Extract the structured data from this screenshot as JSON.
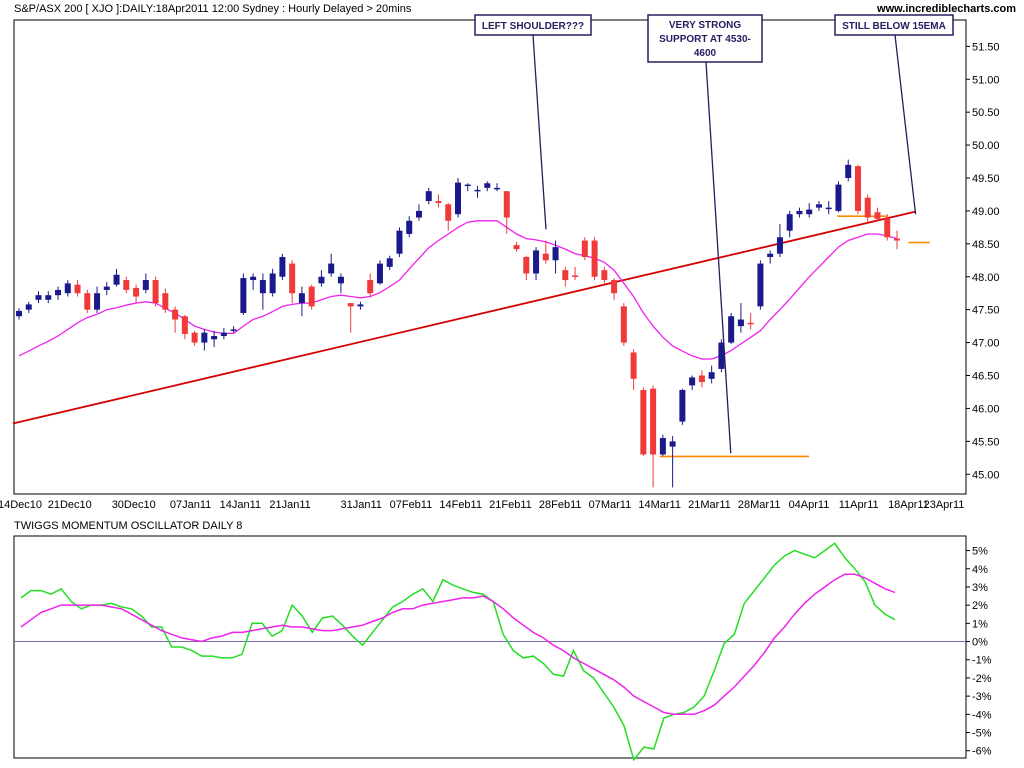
{
  "header": {
    "title": "S&P/ASX 200 [ XJO ]:DAILY:18Apr2011 12:00 Sydney : Hourly Delayed > 20mins",
    "site": "www.incrediblecharts.com"
  },
  "chart_data": [
    {
      "type": "candlestick",
      "title": "S&P/ASX 200 [ XJO ]:DAILY:18Apr2011 12:00 Sydney : Hourly Delayed > 20mins",
      "ylim": [
        44.7,
        51.9
      ],
      "y_ticks": [
        "45.00",
        "45.50",
        "46.00",
        "46.50",
        "47.00",
        "47.50",
        "48.00",
        "48.50",
        "49.00",
        "49.50",
        "50.00",
        "50.50",
        "51.00",
        "51.50"
      ],
      "x_ticks": [
        "14Dec10",
        "21Dec10",
        "30Dec10",
        "07Jan11",
        "14Jan11",
        "21Jan11",
        "31Jan11",
        "07Feb11",
        "14Feb11",
        "21Feb11",
        "28Feb11",
        "07Mar11",
        "14Mar11",
        "21Mar11",
        "28Mar11",
        "04Apr11",
        "11Apr11",
        "18Apr11",
        "23Apr11"
      ],
      "colors": {
        "up": "#1a1a8c",
        "down": "#f03a3a",
        "ema": "#ee22ee",
        "trendline": "#d40000",
        "support": "#ff8800"
      },
      "candles": [
        {
          "o": 47.4,
          "h": 47.52,
          "l": 47.35,
          "c": 47.48
        },
        {
          "o": 47.5,
          "h": 47.62,
          "l": 47.45,
          "c": 47.58
        },
        {
          "o": 47.65,
          "h": 47.78,
          "l": 47.6,
          "c": 47.72
        },
        {
          "o": 47.65,
          "h": 47.78,
          "l": 47.6,
          "c": 47.72
        },
        {
          "o": 47.72,
          "h": 47.85,
          "l": 47.65,
          "c": 47.8
        },
        {
          "o": 47.75,
          "h": 47.95,
          "l": 47.7,
          "c": 47.9
        },
        {
          "o": 47.88,
          "h": 47.95,
          "l": 47.7,
          "c": 47.75
        },
        {
          "o": 47.75,
          "h": 47.8,
          "l": 47.45,
          "c": 47.5
        },
        {
          "o": 47.5,
          "h": 47.85,
          "l": 47.45,
          "c": 47.75
        },
        {
          "o": 47.8,
          "h": 47.92,
          "l": 47.72,
          "c": 47.85
        },
        {
          "o": 47.88,
          "h": 48.12,
          "l": 47.85,
          "c": 48.03
        },
        {
          "o": 47.95,
          "h": 48.0,
          "l": 47.75,
          "c": 47.8
        },
        {
          "o": 47.83,
          "h": 47.88,
          "l": 47.6,
          "c": 47.7
        },
        {
          "o": 47.8,
          "h": 48.05,
          "l": 47.75,
          "c": 47.95
        },
        {
          "o": 47.95,
          "h": 48.0,
          "l": 47.55,
          "c": 47.6
        },
        {
          "o": 47.75,
          "h": 47.82,
          "l": 47.45,
          "c": 47.5
        },
        {
          "o": 47.5,
          "h": 47.55,
          "l": 47.15,
          "c": 47.35
        },
        {
          "o": 47.4,
          "h": 47.42,
          "l": 47.05,
          "c": 47.13
        },
        {
          "o": 47.15,
          "h": 47.18,
          "l": 46.95,
          "c": 47.0
        },
        {
          "o": 47.0,
          "h": 47.2,
          "l": 46.88,
          "c": 47.15
        },
        {
          "o": 47.05,
          "h": 47.18,
          "l": 46.93,
          "c": 47.1
        },
        {
          "o": 47.1,
          "h": 47.22,
          "l": 47.05,
          "c": 47.15
        },
        {
          "o": 47.2,
          "h": 47.25,
          "l": 47.15,
          "c": 47.2
        },
        {
          "o": 47.45,
          "h": 48.05,
          "l": 47.42,
          "c": 47.98
        },
        {
          "o": 47.95,
          "h": 48.05,
          "l": 47.8,
          "c": 48.0
        },
        {
          "o": 47.75,
          "h": 48.05,
          "l": 47.5,
          "c": 47.95
        },
        {
          "o": 47.75,
          "h": 48.12,
          "l": 47.7,
          "c": 48.05
        },
        {
          "o": 48.0,
          "h": 48.35,
          "l": 47.95,
          "c": 48.3
        },
        {
          "o": 48.2,
          "h": 48.25,
          "l": 47.6,
          "c": 47.75
        },
        {
          "o": 47.6,
          "h": 47.85,
          "l": 47.4,
          "c": 47.75
        },
        {
          "o": 47.85,
          "h": 47.88,
          "l": 47.5,
          "c": 47.55
        },
        {
          "o": 47.9,
          "h": 48.1,
          "l": 47.85,
          "c": 48.0
        },
        {
          "o": 48.05,
          "h": 48.35,
          "l": 48.0,
          "c": 48.2
        },
        {
          "o": 47.9,
          "h": 48.05,
          "l": 47.75,
          "c": 48.0
        },
        {
          "o": 47.6,
          "h": 47.6,
          "l": 47.15,
          "c": 47.55
        },
        {
          "o": 47.55,
          "h": 47.62,
          "l": 47.5,
          "c": 47.58
        },
        {
          "o": 47.95,
          "h": 48.05,
          "l": 47.7,
          "c": 47.75
        },
        {
          "o": 47.9,
          "h": 48.25,
          "l": 47.88,
          "c": 48.2
        },
        {
          "o": 48.15,
          "h": 48.32,
          "l": 48.1,
          "c": 48.28
        },
        {
          "o": 48.35,
          "h": 48.75,
          "l": 48.3,
          "c": 48.7
        },
        {
          "o": 48.65,
          "h": 48.92,
          "l": 48.6,
          "c": 48.85
        },
        {
          "o": 48.9,
          "h": 49.1,
          "l": 48.85,
          "c": 49.0
        },
        {
          "o": 49.15,
          "h": 49.35,
          "l": 49.1,
          "c": 49.3
        },
        {
          "o": 49.15,
          "h": 49.25,
          "l": 49.05,
          "c": 49.12
        },
        {
          "o": 49.1,
          "h": 49.12,
          "l": 48.7,
          "c": 48.85
        },
        {
          "o": 48.95,
          "h": 49.5,
          "l": 48.9,
          "c": 49.43
        },
        {
          "o": 49.38,
          "h": 49.42,
          "l": 49.3,
          "c": 49.4
        },
        {
          "o": 49.3,
          "h": 49.38,
          "l": 49.2,
          "c": 49.32
        },
        {
          "o": 49.35,
          "h": 49.45,
          "l": 49.3,
          "c": 49.42
        },
        {
          "o": 49.35,
          "h": 49.42,
          "l": 49.3,
          "c": 49.35
        },
        {
          "o": 49.3,
          "h": 49.3,
          "l": 48.65,
          "c": 48.9
        },
        {
          "o": 48.48,
          "h": 48.53,
          "l": 48.38,
          "c": 48.42
        },
        {
          "o": 48.3,
          "h": 48.32,
          "l": 47.95,
          "c": 48.05
        },
        {
          "o": 48.05,
          "h": 48.45,
          "l": 47.95,
          "c": 48.4
        },
        {
          "o": 48.35,
          "h": 48.55,
          "l": 48.2,
          "c": 48.25
        },
        {
          "o": 48.25,
          "h": 48.55,
          "l": 48.05,
          "c": 48.45
        },
        {
          "o": 48.1,
          "h": 48.15,
          "l": 47.85,
          "c": 47.95
        },
        {
          "o": 48.02,
          "h": 48.15,
          "l": 47.95,
          "c": 48.0
        },
        {
          "o": 48.55,
          "h": 48.6,
          "l": 48.25,
          "c": 48.3
        },
        {
          "o": 48.55,
          "h": 48.6,
          "l": 47.95,
          "c": 48.0
        },
        {
          "o": 48.1,
          "h": 48.15,
          "l": 47.9,
          "c": 47.95
        },
        {
          "o": 47.95,
          "h": 47.98,
          "l": 47.65,
          "c": 47.75
        },
        {
          "o": 47.55,
          "h": 47.6,
          "l": 46.95,
          "c": 47.0
        },
        {
          "o": 46.85,
          "h": 46.9,
          "l": 46.28,
          "c": 46.45
        },
        {
          "o": 46.28,
          "h": 46.32,
          "l": 45.28,
          "c": 45.3
        },
        {
          "o": 46.3,
          "h": 46.35,
          "l": 44.8,
          "c": 45.3
        },
        {
          "o": 45.3,
          "h": 45.6,
          "l": 45.28,
          "c": 45.55
        },
        {
          "o": 45.42,
          "h": 45.58,
          "l": 44.8,
          "c": 45.5
        },
        {
          "o": 45.8,
          "h": 46.3,
          "l": 45.75,
          "c": 46.28
        },
        {
          "o": 46.35,
          "h": 46.5,
          "l": 46.28,
          "c": 46.47
        },
        {
          "o": 46.5,
          "h": 46.58,
          "l": 46.32,
          "c": 46.4
        },
        {
          "o": 46.45,
          "h": 46.65,
          "l": 46.38,
          "c": 46.55
        },
        {
          "o": 46.6,
          "h": 47.05,
          "l": 46.55,
          "c": 47.0
        },
        {
          "o": 47.0,
          "h": 47.45,
          "l": 46.98,
          "c": 47.4
        },
        {
          "o": 47.25,
          "h": 47.6,
          "l": 47.15,
          "c": 47.35
        },
        {
          "o": 47.3,
          "h": 47.45,
          "l": 47.2,
          "c": 47.28
        },
        {
          "o": 47.55,
          "h": 48.25,
          "l": 47.5,
          "c": 48.2
        },
        {
          "o": 48.3,
          "h": 48.4,
          "l": 48.2,
          "c": 48.35
        },
        {
          "o": 48.35,
          "h": 48.8,
          "l": 48.3,
          "c": 48.6
        },
        {
          "o": 48.7,
          "h": 49.0,
          "l": 48.6,
          "c": 48.95
        },
        {
          "o": 48.95,
          "h": 49.05,
          "l": 48.9,
          "c": 49.0
        },
        {
          "o": 48.95,
          "h": 49.12,
          "l": 48.9,
          "c": 49.02
        },
        {
          "o": 49.05,
          "h": 49.15,
          "l": 49.0,
          "c": 49.1
        },
        {
          "o": 49.05,
          "h": 49.15,
          "l": 48.95,
          "c": 49.05
        },
        {
          "o": 49.0,
          "h": 49.45,
          "l": 48.98,
          "c": 49.4
        },
        {
          "o": 49.5,
          "h": 49.78,
          "l": 49.45,
          "c": 49.7
        },
        {
          "o": 49.68,
          "h": 49.7,
          "l": 48.95,
          "c": 49.0
        },
        {
          "o": 49.2,
          "h": 49.25,
          "l": 48.8,
          "c": 48.9
        },
        {
          "o": 48.98,
          "h": 49.05,
          "l": 48.85,
          "c": 48.88
        },
        {
          "o": 48.88,
          "h": 48.95,
          "l": 48.55,
          "c": 48.6
        },
        {
          "o": 48.58,
          "h": 48.7,
          "l": 48.42,
          "c": 48.55
        }
      ],
      "ema15": [
        46.8,
        46.87,
        46.95,
        47.02,
        47.1,
        47.2,
        47.3,
        47.38,
        47.43,
        47.5,
        47.53,
        47.57,
        47.6,
        47.62,
        47.6,
        47.52,
        47.45,
        47.35,
        47.25,
        47.2,
        47.16,
        47.14,
        47.14,
        47.25,
        47.35,
        47.4,
        47.47,
        47.55,
        47.58,
        47.6,
        47.6,
        47.65,
        47.7,
        47.72,
        47.7,
        47.68,
        47.7,
        47.76,
        47.85,
        47.95,
        48.12,
        48.28,
        48.44,
        48.55,
        48.65,
        48.75,
        48.83,
        48.85,
        48.85,
        48.85,
        48.75,
        48.65,
        48.58,
        48.56,
        48.53,
        48.48,
        48.42,
        48.35,
        48.32,
        48.28,
        48.22,
        48.1,
        47.9,
        47.7,
        47.45,
        47.25,
        47.08,
        46.95,
        46.87,
        46.8,
        46.75,
        46.75,
        46.8,
        46.88,
        46.98,
        47.08,
        47.18,
        47.35,
        47.5,
        47.66,
        47.83,
        48.0,
        48.15,
        48.3,
        48.45,
        48.55,
        48.6,
        48.65,
        48.65,
        48.62,
        48.58
      ],
      "trendline": [
        {
          "date": "13Dec10",
          "y": 45.77
        },
        {
          "date": "19Apr11",
          "y": 48.99
        }
      ],
      "support_lines": [
        {
          "from": "14Mar11",
          "to": "04Apr11",
          "y": 45.27
        },
        {
          "from": "08Apr11",
          "to": "15Apr11",
          "y": 48.92
        },
        {
          "from": "18Apr11",
          "to": "21Apr11",
          "y": 48.52
        }
      ],
      "annotations": [
        {
          "text": "LEFT SHOULDER???",
          "point_date": "26Feb11",
          "point_y": 48.72
        },
        {
          "text": "VERY STRONG SUPPORT AT 4530-4600",
          "point_date": "24Mar11",
          "point_y": 45.32
        },
        {
          "text": "STILL BELOW 15EMA",
          "point_date": "19Apr11",
          "point_y": 48.95
        }
      ]
    },
    {
      "type": "line",
      "title": "TWIGGS MOMENTUM OSCILLATOR DAILY 8",
      "ylim": [
        -6.4,
        5.8
      ],
      "y_ticks": [
        "5%",
        "4%",
        "3%",
        "2%",
        "1%",
        "0%",
        "-1%",
        "-2%",
        "-3%",
        "-4%",
        "-5%",
        "-6%"
      ],
      "zero_line": true,
      "series": [
        {
          "color": "#22dd22",
          "values": [
            2.4,
            2.8,
            2.8,
            2.6,
            2.9,
            2.2,
            1.8,
            2.0,
            2.0,
            2.1,
            1.9,
            1.8,
            1.4,
            0.8,
            0.8,
            -0.3,
            -0.3,
            -0.5,
            -0.8,
            -0.8,
            -0.9,
            -0.9,
            -0.7,
            1.0,
            1.0,
            0.3,
            0.6,
            2.0,
            1.4,
            0.5,
            1.3,
            1.4,
            0.9,
            0.3,
            -0.2,
            0.5,
            1.2,
            1.9,
            2.2,
            2.6,
            2.9,
            2.2,
            3.4,
            3.1,
            2.9,
            2.7,
            2.6,
            2.2,
            0.4,
            -0.5,
            -0.9,
            -0.8,
            -1.2,
            -1.8,
            -1.9,
            -0.5,
            -1.6,
            -2.0,
            -2.8,
            -3.6,
            -4.6,
            -6.5,
            -5.8,
            -5.9,
            -4.2,
            -4.0,
            -3.9,
            -3.6,
            -3.0,
            -1.6,
            -0.1,
            0.4,
            2.1,
            2.8,
            3.5,
            4.2,
            4.7,
            5.0,
            4.8,
            4.6,
            5.0,
            5.4,
            4.6,
            4.0,
            3.3,
            2.0,
            1.5,
            1.2
          ]
        },
        {
          "color": "#ee22ee",
          "values": [
            0.8,
            1.2,
            1.6,
            1.8,
            2.0,
            2.0,
            2.0,
            2.0,
            2.0,
            1.9,
            1.8,
            1.5,
            1.2,
            0.9,
            0.6,
            0.4,
            0.2,
            0.1,
            0.0,
            0.2,
            0.3,
            0.5,
            0.5,
            0.6,
            0.7,
            0.8,
            0.9,
            0.8,
            0.8,
            0.7,
            0.6,
            0.6,
            0.7,
            0.8,
            0.9,
            1.1,
            1.3,
            1.6,
            1.8,
            1.8,
            2.0,
            2.1,
            2.2,
            2.3,
            2.4,
            2.4,
            2.5,
            2.2,
            1.8,
            1.3,
            0.9,
            0.5,
            0.2,
            -0.2,
            -0.5,
            -0.9,
            -1.2,
            -1.5,
            -1.8,
            -2.1,
            -2.5,
            -3.0,
            -3.3,
            -3.6,
            -3.9,
            -4.0,
            -4.0,
            -4.0,
            -3.8,
            -3.5,
            -3.0,
            -2.5,
            -1.9,
            -1.3,
            -0.6,
            0.2,
            0.8,
            1.5,
            2.1,
            2.6,
            3.0,
            3.4,
            3.7,
            3.7,
            3.5,
            3.2,
            2.9,
            2.7
          ]
        }
      ]
    }
  ]
}
